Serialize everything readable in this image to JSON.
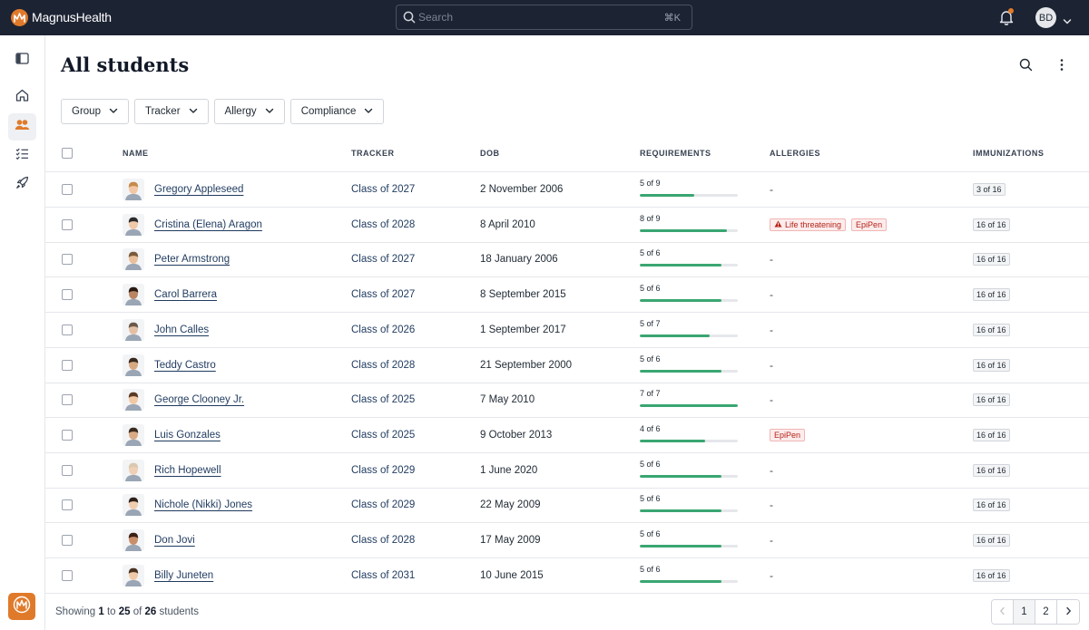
{
  "brand": {
    "name": "MagnusHealth",
    "color": "#e07a2b"
  },
  "search": {
    "placeholder": "Search",
    "shortcut": "⌘K"
  },
  "user": {
    "initials": "BD"
  },
  "page": {
    "title": "All students"
  },
  "filters": [
    "Group",
    "Tracker",
    "Allergy",
    "Compliance"
  ],
  "columns": {
    "name": "NAME",
    "tracker": "TRACKER",
    "dob": "DOB",
    "requirements": "REQUIREMENTS",
    "allergies": "ALLERGIES",
    "immunizations": "IMMUNIZATIONS"
  },
  "students": [
    {
      "name": "Gregory Appleseed",
      "tracker": "Class of 2027",
      "dob": "2 November 2006",
      "req_done": 5,
      "req_total": 9,
      "req_label": "5 of 9",
      "allergies": [],
      "allergy_none": "-",
      "immunizations": "3 of 16",
      "skin": "#f2c7a5",
      "hair": "#c68a4a"
    },
    {
      "name": "Cristina (Elena) Aragon",
      "tracker": "Class of 2028",
      "dob": "8 April 2010",
      "req_done": 8,
      "req_total": 9,
      "req_label": "8 of 9",
      "allergies": [
        {
          "label": "Life threatening",
          "warn": true
        },
        {
          "label": "EpiPen",
          "warn": false
        }
      ],
      "allergy_none": "",
      "immunizations": "16 of 16",
      "skin": "#f0c9a8",
      "hair": "#2b2b2b"
    },
    {
      "name": "Peter Armstrong",
      "tracker": "Class of 2027",
      "dob": "18 January 2006",
      "req_done": 5,
      "req_total": 6,
      "req_label": "5 of 6",
      "allergies": [],
      "allergy_none": "-",
      "immunizations": "16 of 16",
      "skin": "#e9bf9c",
      "hair": "#7a5a3a"
    },
    {
      "name": "Carol Barrera",
      "tracker": "Class of 2027",
      "dob": "8 September 2015",
      "req_done": 5,
      "req_total": 6,
      "req_label": "5 of 6",
      "allergies": [],
      "allergy_none": "-",
      "immunizations": "16 of 16",
      "skin": "#b98563",
      "hair": "#2a1a12"
    },
    {
      "name": "John Calles",
      "tracker": "Class of 2026",
      "dob": "1 September 2017",
      "req_done": 5,
      "req_total": 7,
      "req_label": "5 of 7",
      "allergies": [],
      "allergy_none": "-",
      "immunizations": "16 of 16",
      "skin": "#e3c0a5",
      "hair": "#6b5a4a"
    },
    {
      "name": "Teddy Castro",
      "tracker": "Class of 2028",
      "dob": "21 September 2000",
      "req_done": 5,
      "req_total": 6,
      "req_label": "5 of 6",
      "allergies": [],
      "allergy_none": "-",
      "immunizations": "16 of 16",
      "skin": "#d7a982",
      "hair": "#3a2a1e"
    },
    {
      "name": "George Clooney Jr.",
      "tracker": "Class of 2025",
      "dob": "7 May 2010",
      "req_done": 7,
      "req_total": 7,
      "req_label": "7 of 7",
      "allergies": [],
      "allergy_none": "-",
      "immunizations": "16 of 16",
      "skin": "#f0c8a4",
      "hair": "#5a3a22"
    },
    {
      "name": "Luis Gonzales",
      "tracker": "Class of 2025",
      "dob": "9 October 2013",
      "req_done": 4,
      "req_total": 6,
      "req_label": "4 of 6",
      "allergies": [
        {
          "label": "EpiPen",
          "warn": false
        }
      ],
      "allergy_none": "",
      "immunizations": "16 of 16",
      "skin": "#d9aa85",
      "hair": "#3b2b1f"
    },
    {
      "name": "Rich Hopewell",
      "tracker": "Class of 2029",
      "dob": "1 June 2020",
      "req_done": 5,
      "req_total": 6,
      "req_label": "5 of 6",
      "allergies": [],
      "allergy_none": "-",
      "immunizations": "16 of 16",
      "skin": "#efd0b6",
      "hair": "#d9c9b2"
    },
    {
      "name": "Nichole (Nikki) Jones",
      "tracker": "Class of 2029",
      "dob": "22 May 2009",
      "req_done": 5,
      "req_total": 6,
      "req_label": "5 of 6",
      "allergies": [],
      "allergy_none": "-",
      "immunizations": "16 of 16",
      "skin": "#f1cdb0",
      "hair": "#2e211a"
    },
    {
      "name": "Don Jovi",
      "tracker": "Class of 2028",
      "dob": "17 May 2009",
      "req_done": 5,
      "req_total": 6,
      "req_label": "5 of 6",
      "allergies": [],
      "allergy_none": "-",
      "immunizations": "16 of 16",
      "skin": "#c98e6a",
      "hair": "#3a1f14"
    },
    {
      "name": "Billy Juneten",
      "tracker": "Class of 2031",
      "dob": "10 June 2015",
      "req_done": 5,
      "req_total": 6,
      "req_label": "5 of 6",
      "allergies": [],
      "allergy_none": "-",
      "immunizations": "16 of 16",
      "skin": "#f0caa8",
      "hair": "#4a3221"
    }
  ],
  "footer": {
    "prefix": "Showing",
    "from": "1",
    "to_word": "to",
    "to": "25",
    "of_word": "of",
    "total": "26",
    "suffix": "students"
  },
  "pagination": {
    "pages": [
      "1",
      "2"
    ],
    "current": "1"
  }
}
